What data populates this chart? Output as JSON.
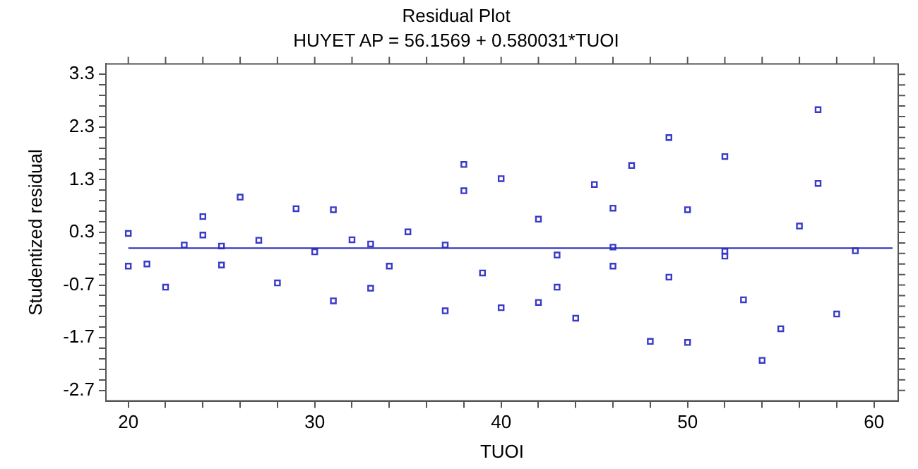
{
  "chart_data": {
    "type": "scatter",
    "title": "Residual Plot",
    "subtitle": "HUYET AP = 56.1569 + 0.580031*TUOI",
    "xlabel": "TUOI",
    "ylabel": "Studentized residual",
    "x": [
      20,
      20,
      21,
      22,
      23,
      24,
      24,
      25,
      25,
      26,
      27,
      28,
      29,
      30,
      31,
      31,
      32,
      33,
      33,
      34,
      35,
      37,
      37,
      38,
      38,
      39,
      40,
      40,
      42,
      42,
      43,
      43,
      44,
      45,
      46,
      46,
      46,
      47,
      48,
      49,
      49,
      50,
      50,
      52,
      52,
      52,
      53,
      54,
      55,
      56,
      57,
      57,
      58,
      59
    ],
    "series": [
      {
        "color": "#3a3ac8",
        "values": [
          0.28,
          -0.34,
          -0.3,
          -0.74,
          0.06,
          0.6,
          0.25,
          0.04,
          -0.32,
          0.97,
          0.15,
          -0.66,
          0.75,
          -0.07,
          0.73,
          -1.0,
          0.16,
          0.08,
          -0.76,
          -0.34,
          0.31,
          0.06,
          -1.19,
          1.59,
          1.09,
          -0.47,
          1.32,
          -1.13,
          0.55,
          -1.03,
          -0.13,
          -0.74,
          -1.33,
          1.21,
          0.76,
          0.02,
          -0.34,
          1.57,
          -1.77,
          2.1,
          -0.55,
          0.73,
          -1.79,
          1.74,
          -0.06,
          -0.15,
          -0.98,
          -2.13,
          -1.53,
          0.42,
          2.63,
          1.23,
          -1.25,
          -0.05
        ]
      }
    ],
    "marker": "square",
    "grid": false,
    "legend": false,
    "ref_lines": [
      {
        "axis": "y",
        "value": 0,
        "color": "#2a2ab8"
      }
    ],
    "xlim": [
      18.8,
      61.3
    ],
    "ylim": [
      -2.9,
      3.5
    ],
    "xticks": [
      20,
      {
        "value": 22,
        "label": null
      },
      {
        "value": 24,
        "label": null
      },
      {
        "value": 26,
        "label": null
      },
      {
        "value": 28,
        "label": null
      },
      30,
      {
        "value": 32,
        "label": null
      },
      {
        "value": 34,
        "label": null
      },
      {
        "value": 36,
        "label": null
      },
      {
        "value": 38,
        "label": null
      },
      40,
      {
        "value": 42,
        "label": null
      },
      {
        "value": 44,
        "label": null
      },
      {
        "value": 46,
        "label": null
      },
      {
        "value": 48,
        "label": null
      },
      50,
      {
        "value": 52,
        "label": null
      },
      {
        "value": 54,
        "label": null
      },
      {
        "value": 56,
        "label": null
      },
      {
        "value": 58,
        "label": null
      },
      60
    ],
    "yticks": [
      {
        "value": -2.7,
        "label": "-2.7"
      },
      {
        "value": -2.5,
        "label": null
      },
      {
        "value": -2.3,
        "label": null
      },
      {
        "value": -2.1,
        "label": null
      },
      {
        "value": -1.9,
        "label": null
      },
      {
        "value": -1.7,
        "label": "-1.7"
      },
      {
        "value": -1.5,
        "label": null
      },
      {
        "value": -1.3,
        "label": null
      },
      {
        "value": -1.1,
        "label": null
      },
      {
        "value": -0.9,
        "label": null
      },
      {
        "value": -0.7,
        "label": "-0.7"
      },
      {
        "value": -0.5,
        "label": null
      },
      {
        "value": -0.3,
        "label": null
      },
      {
        "value": -0.1,
        "label": null
      },
      {
        "value": 0.1,
        "label": null
      },
      0.3,
      {
        "value": 0.5,
        "label": null
      },
      {
        "value": 0.7,
        "label": null
      },
      {
        "value": 0.9,
        "label": null
      },
      {
        "value": 1.1,
        "label": null
      },
      1.3,
      {
        "value": 1.5,
        "label": null
      },
      {
        "value": 1.7,
        "label": null
      },
      {
        "value": 1.9,
        "label": null
      },
      {
        "value": 2.1,
        "label": null
      },
      2.3,
      {
        "value": 2.5,
        "label": null
      },
      {
        "value": 2.7,
        "label": null
      },
      {
        "value": 2.9,
        "label": null
      },
      {
        "value": 3.1,
        "label": null
      },
      3.3
    ]
  }
}
